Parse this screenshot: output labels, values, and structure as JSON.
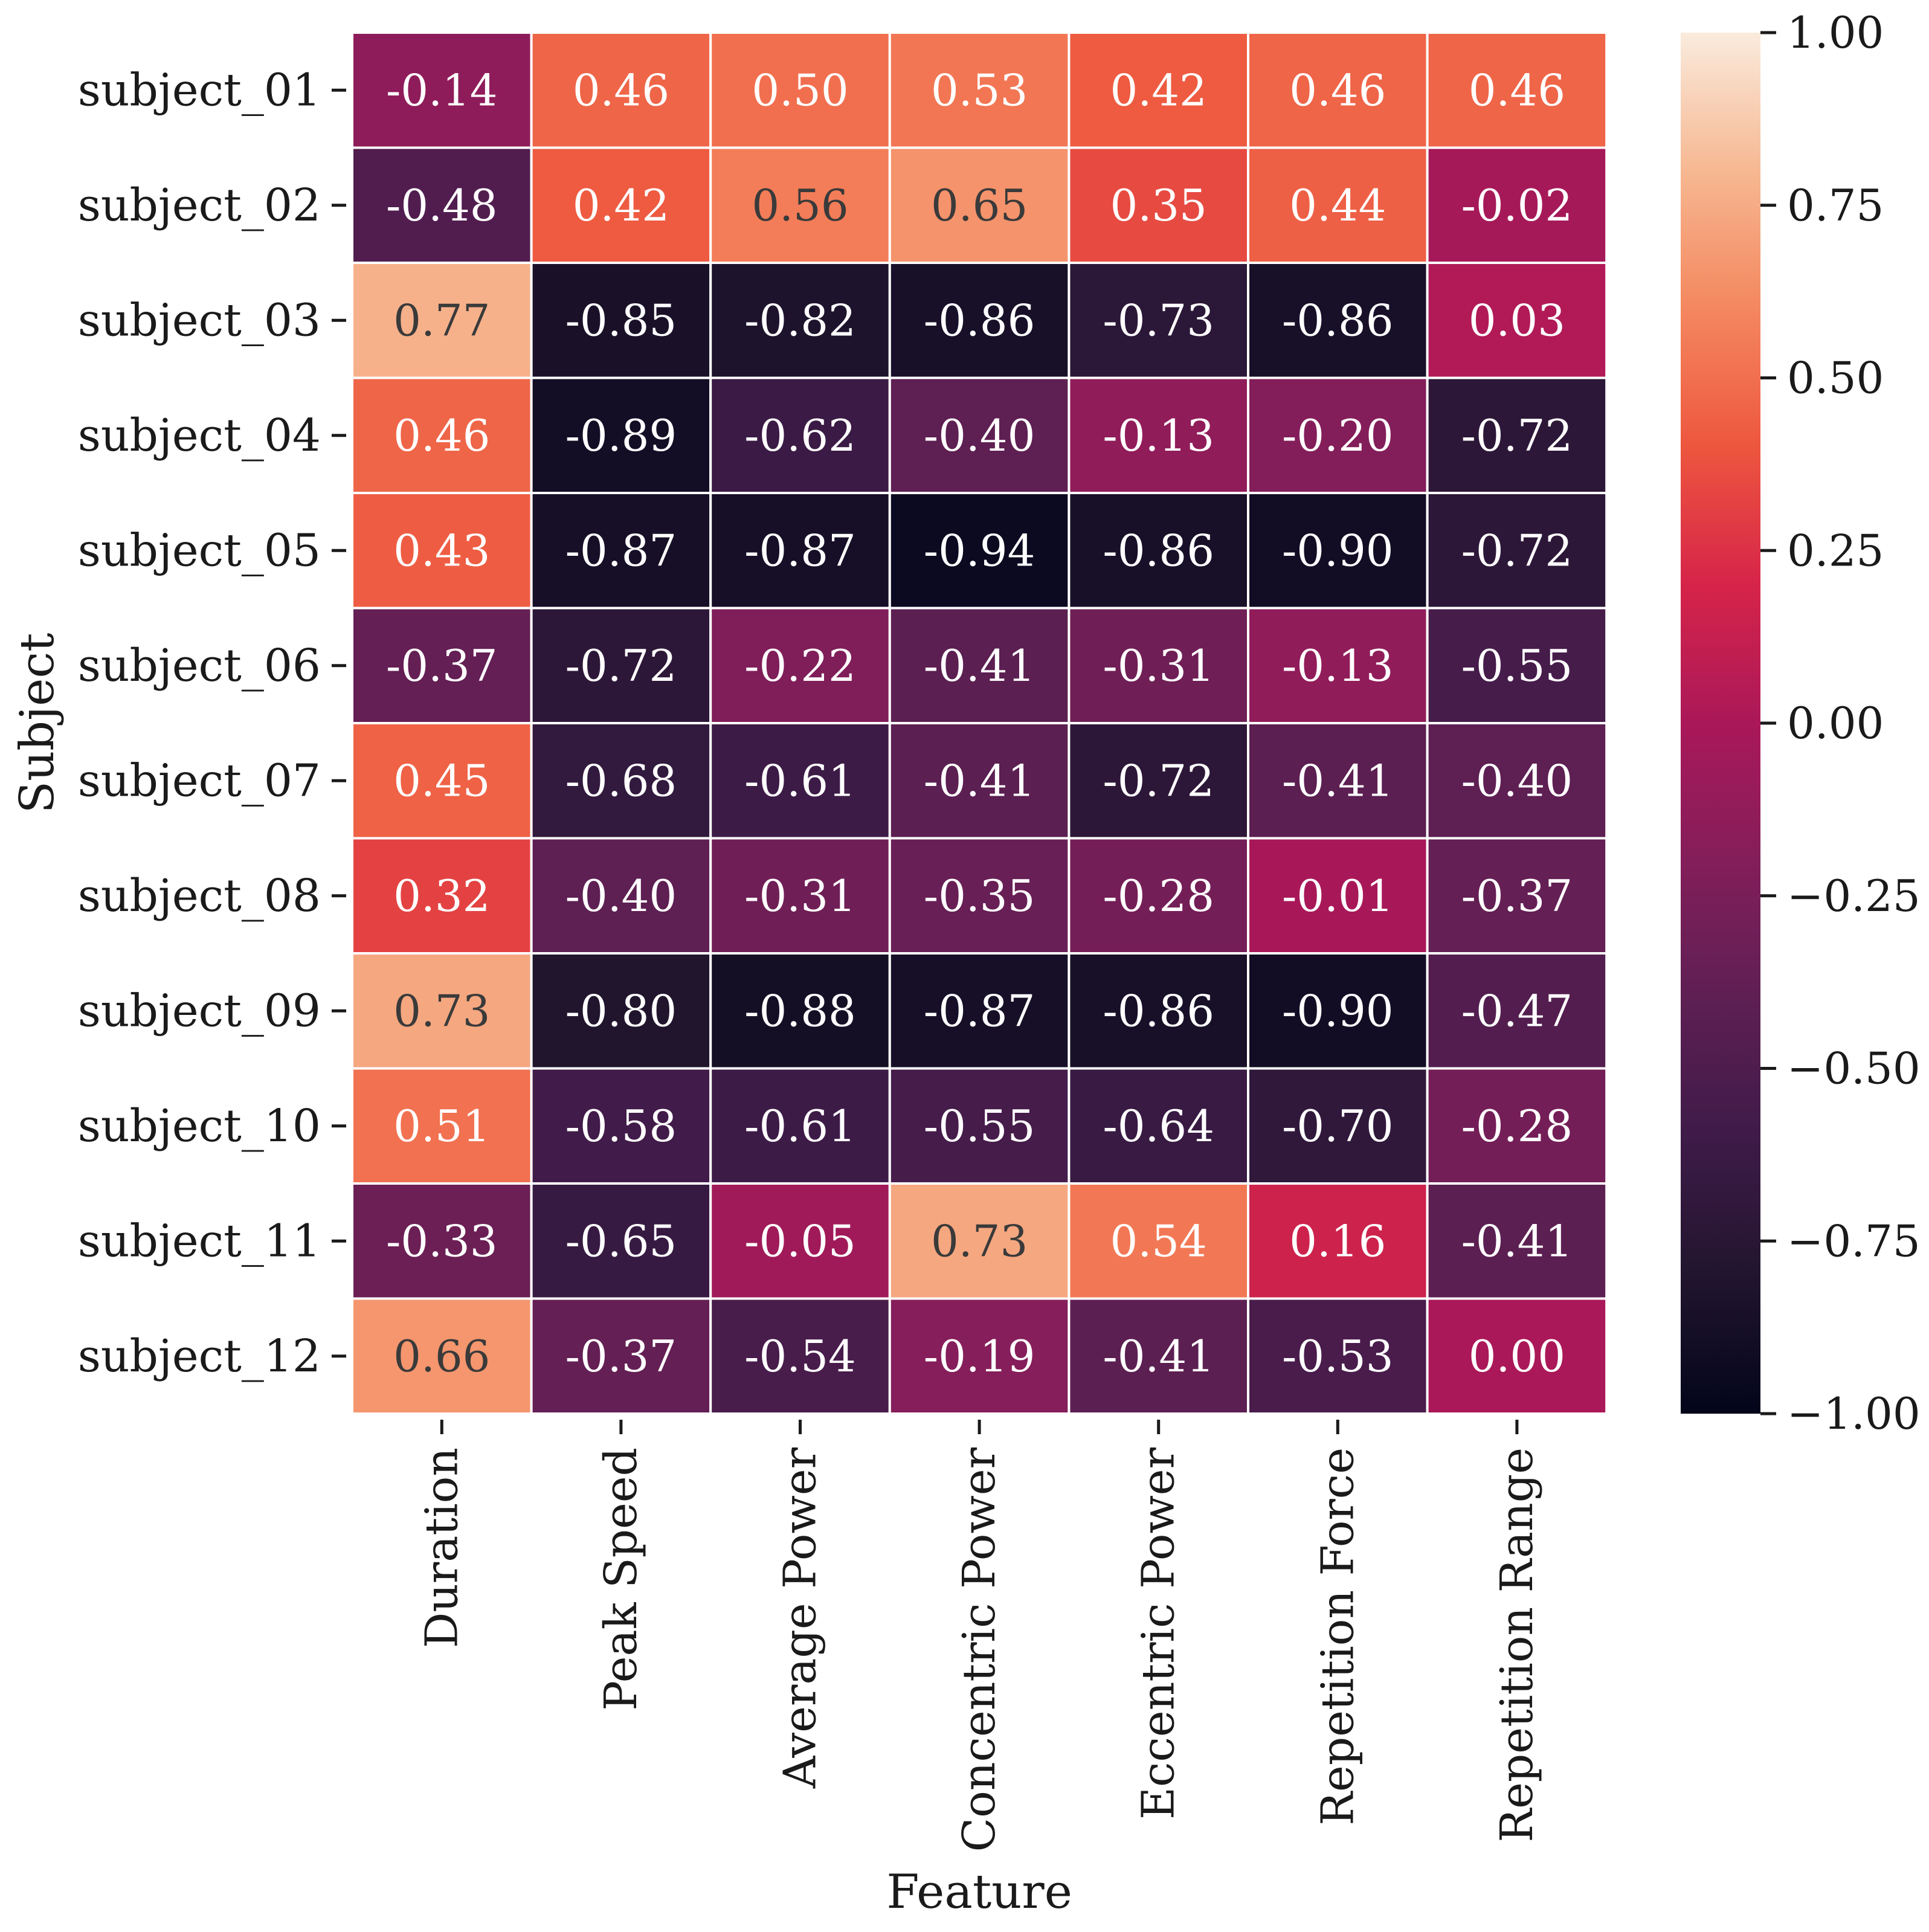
{
  "chart_data": {
    "type": "heatmap",
    "title": "",
    "xlabel": "Feature",
    "ylabel": "Subject",
    "columns": [
      "Duration",
      "Peak Speed",
      "Average Power",
      "Concentric Power",
      "Eccentric Power",
      "Repetition Force",
      "Repetition Range"
    ],
    "rows": [
      "subject_01",
      "subject_02",
      "subject_03",
      "subject_04",
      "subject_05",
      "subject_06",
      "subject_07",
      "subject_08",
      "subject_09",
      "subject_10",
      "subject_11",
      "subject_12"
    ],
    "values": [
      [
        -0.14,
        0.46,
        0.5,
        0.53,
        0.42,
        0.46,
        0.46
      ],
      [
        -0.48,
        0.42,
        0.56,
        0.65,
        0.35,
        0.44,
        -0.02
      ],
      [
        0.77,
        -0.85,
        -0.82,
        -0.86,
        -0.73,
        -0.86,
        0.03
      ],
      [
        0.46,
        -0.89,
        -0.62,
        -0.4,
        -0.13,
        -0.2,
        -0.72
      ],
      [
        0.43,
        -0.87,
        -0.87,
        -0.94,
        -0.86,
        -0.9,
        -0.72
      ],
      [
        -0.37,
        -0.72,
        -0.22,
        -0.41,
        -0.31,
        -0.13,
        -0.55
      ],
      [
        0.45,
        -0.68,
        -0.61,
        -0.41,
        -0.72,
        -0.41,
        -0.4
      ],
      [
        0.32,
        -0.4,
        -0.31,
        -0.35,
        -0.28,
        -0.01,
        -0.37
      ],
      [
        0.73,
        -0.8,
        -0.88,
        -0.87,
        -0.86,
        -0.9,
        -0.47
      ],
      [
        0.51,
        -0.58,
        -0.61,
        -0.55,
        -0.64,
        -0.7,
        -0.28
      ],
      [
        -0.33,
        -0.65,
        -0.05,
        0.73,
        0.54,
        0.16,
        -0.41
      ],
      [
        0.66,
        -0.37,
        -0.54,
        -0.19,
        -0.41,
        -0.53,
        0.0
      ]
    ],
    "vmin": -1.0,
    "vmax": 1.0,
    "colormap": "rocket",
    "colorbar_ticks": [
      "1.00",
      "0.75",
      "0.50",
      "0.25",
      "0.00",
      "−0.25",
      "−0.50",
      "−0.75",
      "−1.00"
    ],
    "colorbar_tick_values": [
      1.0,
      0.75,
      0.5,
      0.25,
      0.0,
      -0.25,
      -0.5,
      -0.75,
      -1.0
    ],
    "annotation_format": "0.00",
    "grid": false,
    "legend": "colorbar-right"
  },
  "colors": {
    "background": "#ffffff",
    "cell_border": "#ffffff",
    "axis": "#1a1a1a",
    "text_light": "#ffffff",
    "text_dark": "#3a3a3a"
  }
}
